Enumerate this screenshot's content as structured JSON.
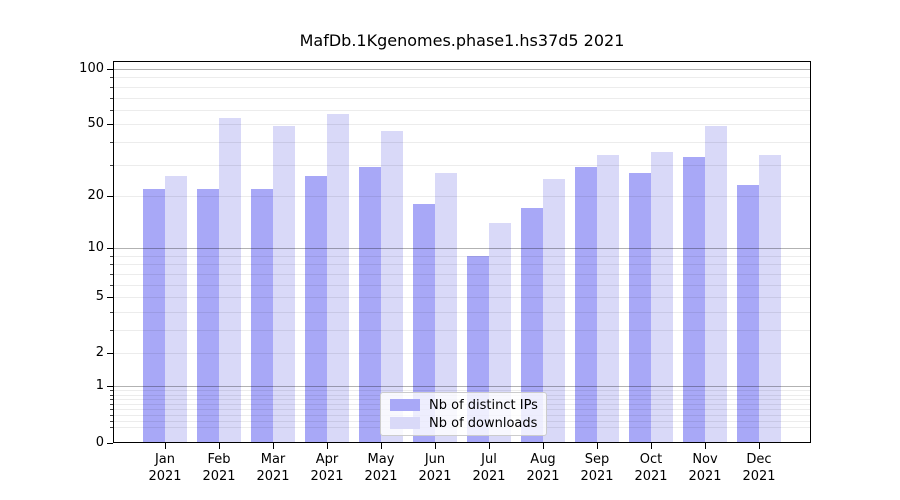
{
  "chart_data": {
    "type": "bar",
    "title": "MafDb.1Kgenomes.phase1.hs37d5 2021",
    "categories": [
      "Jan",
      "Feb",
      "Mar",
      "Apr",
      "May",
      "Jun",
      "Jul",
      "Aug",
      "Sep",
      "Oct",
      "Nov",
      "Dec"
    ],
    "year": "2021",
    "series": [
      {
        "name": "Nb of distinct IPs",
        "color": "#a8a8f7",
        "values": [
          22,
          22,
          22,
          26,
          29,
          18,
          9,
          17,
          29,
          27,
          33,
          23
        ]
      },
      {
        "name": "Nb of downloads",
        "color": "#d9d9f8",
        "values": [
          26,
          54,
          49,
          57,
          46,
          27,
          14,
          25,
          34,
          35,
          49,
          34
        ]
      }
    ],
    "yscale": "log1p",
    "ylim": [
      0,
      112
    ],
    "yticks": [
      100,
      50,
      20,
      10,
      5,
      2,
      1,
      0
    ],
    "major_gridlines": [
      100,
      10,
      1
    ],
    "minor_gridlines": [
      0.2,
      0.3,
      0.4,
      0.5,
      0.6,
      0.7,
      0.8,
      0.9,
      2,
      3,
      4,
      5,
      6,
      7,
      8,
      9,
      20,
      30,
      40,
      50,
      60,
      70,
      80,
      90
    ],
    "grid": true,
    "legend_position": "lower center"
  }
}
